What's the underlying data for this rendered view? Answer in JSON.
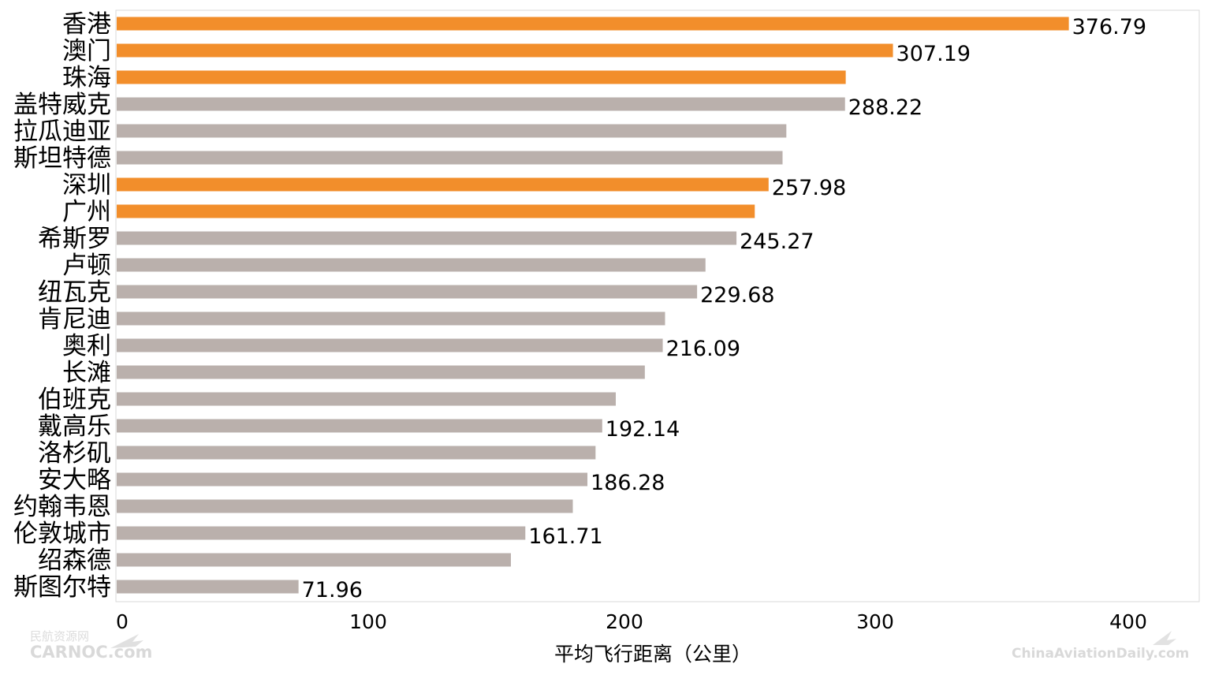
{
  "chart_data": {
    "type": "bar",
    "orientation": "horizontal",
    "categories": [
      "香港",
      "澳门",
      "珠海",
      "盖特威克",
      "拉瓜迪亚",
      "斯坦特德",
      "深圳",
      "广州",
      "希斯罗",
      "卢顿",
      "纽瓦克",
      "肯尼迪",
      "奥利",
      "长滩",
      "伯班克",
      "戴高乐",
      "洛杉矶",
      "安大略",
      "约翰韦恩",
      "伦敦城市",
      "绍森德",
      "斯图尔特"
    ],
    "values": [
      376.79,
      307.19,
      288.5,
      288.22,
      265,
      263.5,
      257.98,
      252.5,
      245.27,
      233,
      229.68,
      217,
      216.09,
      209,
      197.5,
      192.14,
      189.5,
      186.28,
      180.5,
      161.71,
      156,
      71.96
    ],
    "data_labels": [
      "376.79",
      "307.19",
      "",
      "288.22",
      "",
      "",
      "257.98",
      "",
      "245.27",
      "",
      "229.68",
      "",
      "216.09",
      "",
      "",
      "192.14",
      "",
      "186.28",
      "",
      "161.71",
      "",
      "71.96"
    ],
    "highlighted": [
      true,
      true,
      true,
      false,
      false,
      false,
      true,
      true,
      false,
      false,
      false,
      false,
      false,
      false,
      false,
      false,
      false,
      false,
      false,
      false,
      false,
      false
    ],
    "colors": {
      "highlight": "#F28E2B",
      "default": "#BAB0AC"
    },
    "xlabel": "平均飞行距离（公里）",
    "xticks": [
      0,
      100,
      200,
      300,
      400
    ],
    "xlim": [
      0,
      425
    ],
    "grid": false,
    "legend": "none"
  },
  "watermarks": {
    "left_cn": "民航资源网",
    "left_en": "CARNOC.com",
    "right_en": "ChinaAviationDaily.com"
  }
}
